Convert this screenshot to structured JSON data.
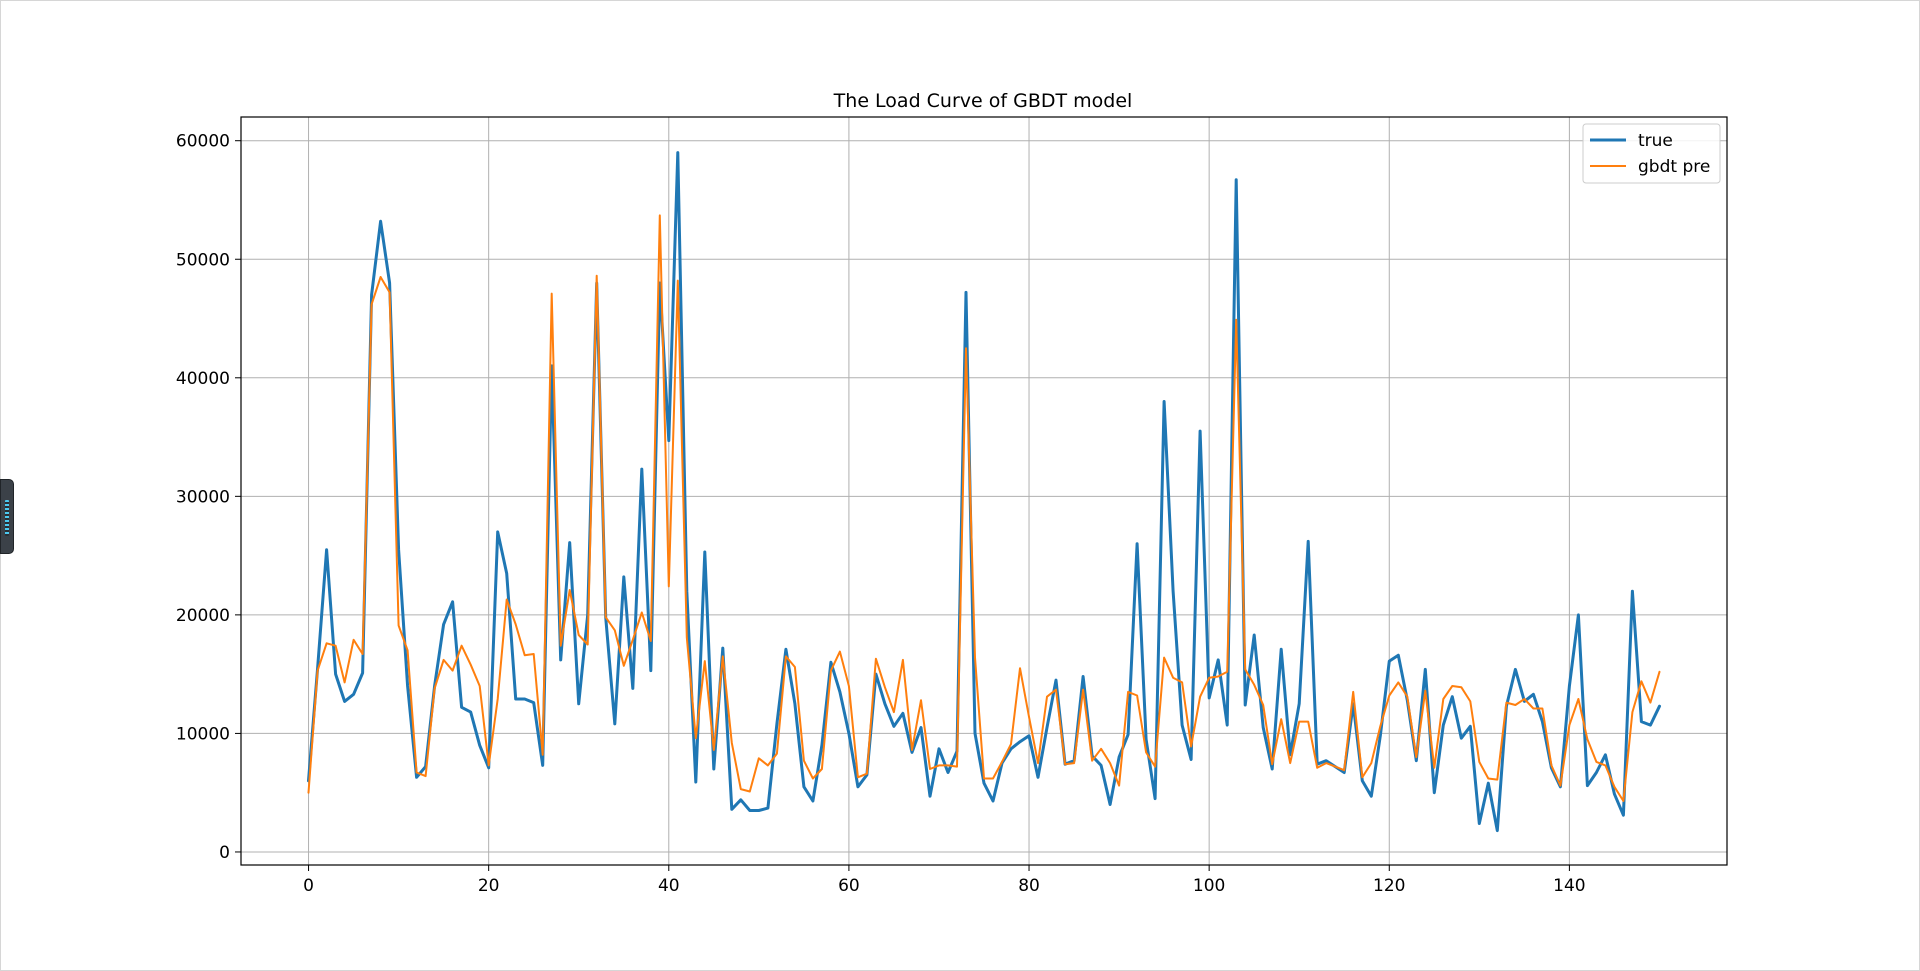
{
  "window": {
    "side_widget_icon": "level-meter-icon"
  },
  "chart_data": {
    "type": "line",
    "title": "The Load Curve of GBDT model",
    "xlabel": "",
    "ylabel": "",
    "xlim": [
      -7.5,
      157.5
    ],
    "ylim": [
      -1100,
      62000
    ],
    "xticks": [
      0,
      20,
      40,
      60,
      80,
      100,
      120,
      140
    ],
    "yticks": [
      0,
      10000,
      20000,
      30000,
      40000,
      50000,
      60000
    ],
    "grid": true,
    "legend_position": "top-right",
    "series": [
      {
        "name": "true",
        "color": "#1f77b4",
        "values": [
          6000,
          15500,
          25500,
          15000,
          12700,
          13300,
          15100,
          47000,
          53200,
          48000,
          25500,
          14000,
          6300,
          7200,
          14000,
          19200,
          21100,
          12200,
          11800,
          9000,
          7100,
          27000,
          23500,
          12900,
          12900,
          12600,
          7300,
          41000,
          16200,
          26100,
          12500,
          20000,
          48000,
          19800,
          10800,
          23200,
          13800,
          32300,
          15300,
          48000,
          34700,
          59000,
          22000,
          5900,
          25300,
          7000,
          17200,
          3600,
          4400,
          3500,
          3500,
          3700,
          10800,
          17100,
          12500,
          5500,
          4300,
          9000,
          16000,
          13500,
          10000,
          5500,
          6500,
          15000,
          12500,
          10600,
          11700,
          8400,
          10500,
          4700,
          8700,
          6700,
          8500,
          47200,
          10000,
          5800,
          4300,
          7500,
          8700,
          9300,
          9800,
          6300,
          10500,
          14500,
          7400,
          7700,
          14800,
          8100,
          7300,
          4000,
          8000,
          9900,
          26000,
          9500,
          4500,
          38000,
          22000,
          10700,
          7800,
          35500,
          13000,
          16200,
          10700,
          56700,
          12400,
          18300,
          10500,
          7000,
          17100,
          8200,
          12500,
          26200,
          7400,
          7700,
          7200,
          6700,
          12500,
          6000,
          4700,
          9800,
          16100,
          16600,
          12800,
          7700,
          15400,
          5000,
          10700,
          13100,
          9600,
          10600,
          2400,
          5800,
          1800,
          12300,
          15400,
          12700,
          13300,
          11000,
          7100,
          5500,
          14000,
          20000,
          5600,
          6700,
          8200,
          4900,
          3100,
          22000,
          11000,
          10700,
          12300
        ]
      },
      {
        "name": "gbdt pre",
        "color": "#ff7f0e",
        "values": [
          5000,
          15300,
          17600,
          17400,
          14300,
          17900,
          16700,
          46200,
          48500,
          47200,
          19100,
          17000,
          6700,
          6400,
          13800,
          16200,
          15300,
          17400,
          15800,
          14000,
          7300,
          12900,
          21300,
          19200,
          16600,
          16700,
          8200,
          47100,
          17400,
          22100,
          18300,
          17500,
          48600,
          19800,
          18700,
          15700,
          17900,
          20200,
          17800,
          53700,
          22400,
          48200,
          18100,
          9600,
          16100,
          8600,
          16500,
          9200,
          5300,
          5100,
          7900,
          7300,
          8300,
          16500,
          15600,
          7700,
          6200,
          7000,
          15300,
          16900,
          14000,
          6300,
          6600,
          16300,
          13900,
          11800,
          16200,
          8600,
          12800,
          7000,
          7300,
          7300,
          7200,
          42500,
          16400,
          6200,
          6200,
          7600,
          9100,
          15500,
          11400,
          7500,
          13100,
          13700,
          7400,
          7500,
          13700,
          7700,
          8700,
          7500,
          5600,
          13500,
          13200,
          8400,
          7200,
          16400,
          14700,
          14300,
          8900,
          13100,
          14700,
          14800,
          15200,
          44900,
          15400,
          14100,
          12400,
          7400,
          11200,
          7500,
          11000,
          11000,
          7100,
          7500,
          7200,
          6900,
          13500,
          6300,
          7500,
          10600,
          13200,
          14300,
          13100,
          8000,
          13600,
          7100,
          12900,
          14000,
          13900,
          12700,
          7600,
          6200,
          6100,
          12600,
          12400,
          12900,
          12100,
          12100,
          7300,
          5600,
          10700,
          12900,
          9500,
          7600,
          7300,
          5500,
          4300,
          11800,
          14400,
          12600,
          15200
        ]
      }
    ]
  }
}
